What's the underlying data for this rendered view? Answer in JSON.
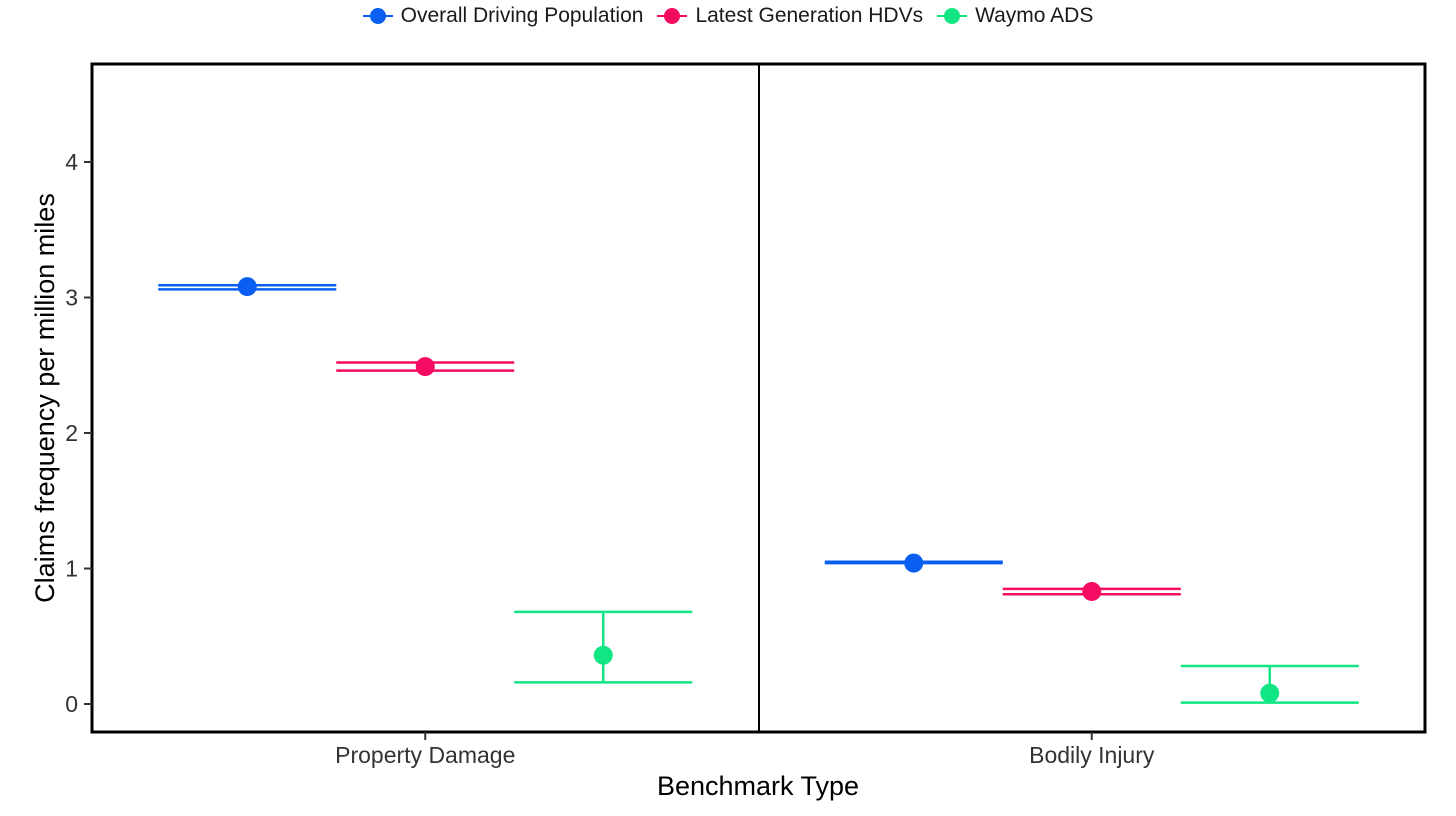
{
  "chart_data": {
    "type": "scatter",
    "subtype": "point-with-error-bars",
    "title": "",
    "xlabel": "Benchmark Type",
    "ylabel": "Claims frequency per million miles",
    "categories": [
      "Property Damage",
      "Bodily Injury"
    ],
    "ylim": [
      -0.2,
      4.6
    ],
    "yticks": [
      0,
      1,
      2,
      3,
      4
    ],
    "legend_position": "top-center",
    "grid": false,
    "series": [
      {
        "name": "Overall Driving Population",
        "color": "#0b5ff0",
        "values": [
          3.08,
          1.04
        ],
        "ci_low": [
          3.06,
          1.04
        ],
        "ci_high": [
          3.09,
          1.05
        ]
      },
      {
        "name": "Latest Generation HDVs",
        "color": "#f50b61",
        "values": [
          2.49,
          0.83
        ],
        "ci_low": [
          2.46,
          0.81
        ],
        "ci_high": [
          2.52,
          0.85
        ]
      },
      {
        "name": "Waymo ADS",
        "color": "#12e583",
        "values": [
          0.36,
          0.08
        ],
        "ci_low": [
          0.16,
          0.01
        ],
        "ci_high": [
          0.68,
          0.28
        ]
      }
    ]
  }
}
